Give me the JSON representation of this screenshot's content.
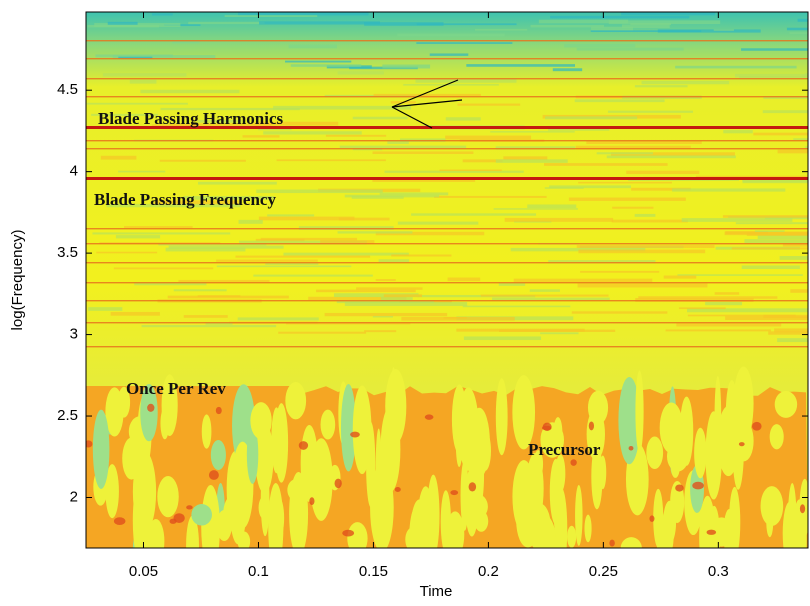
{
  "chart_data": {
    "type": "spectrogram",
    "xlabel": "Time",
    "ylabel": "log(Frequency)",
    "xlim": [
      0.025,
      0.339
    ],
    "ylim": [
      1.69,
      4.98
    ],
    "xticks": [
      0.05,
      0.1,
      0.15,
      0.2,
      0.25,
      0.3
    ],
    "yticks": [
      2,
      2.5,
      3,
      3.5,
      4,
      4.5
    ],
    "annotations": [
      "Blade Passing Harmonics",
      "Blade Passing Frequency",
      "Once Per Rev",
      "Precursor"
    ]
  }
}
